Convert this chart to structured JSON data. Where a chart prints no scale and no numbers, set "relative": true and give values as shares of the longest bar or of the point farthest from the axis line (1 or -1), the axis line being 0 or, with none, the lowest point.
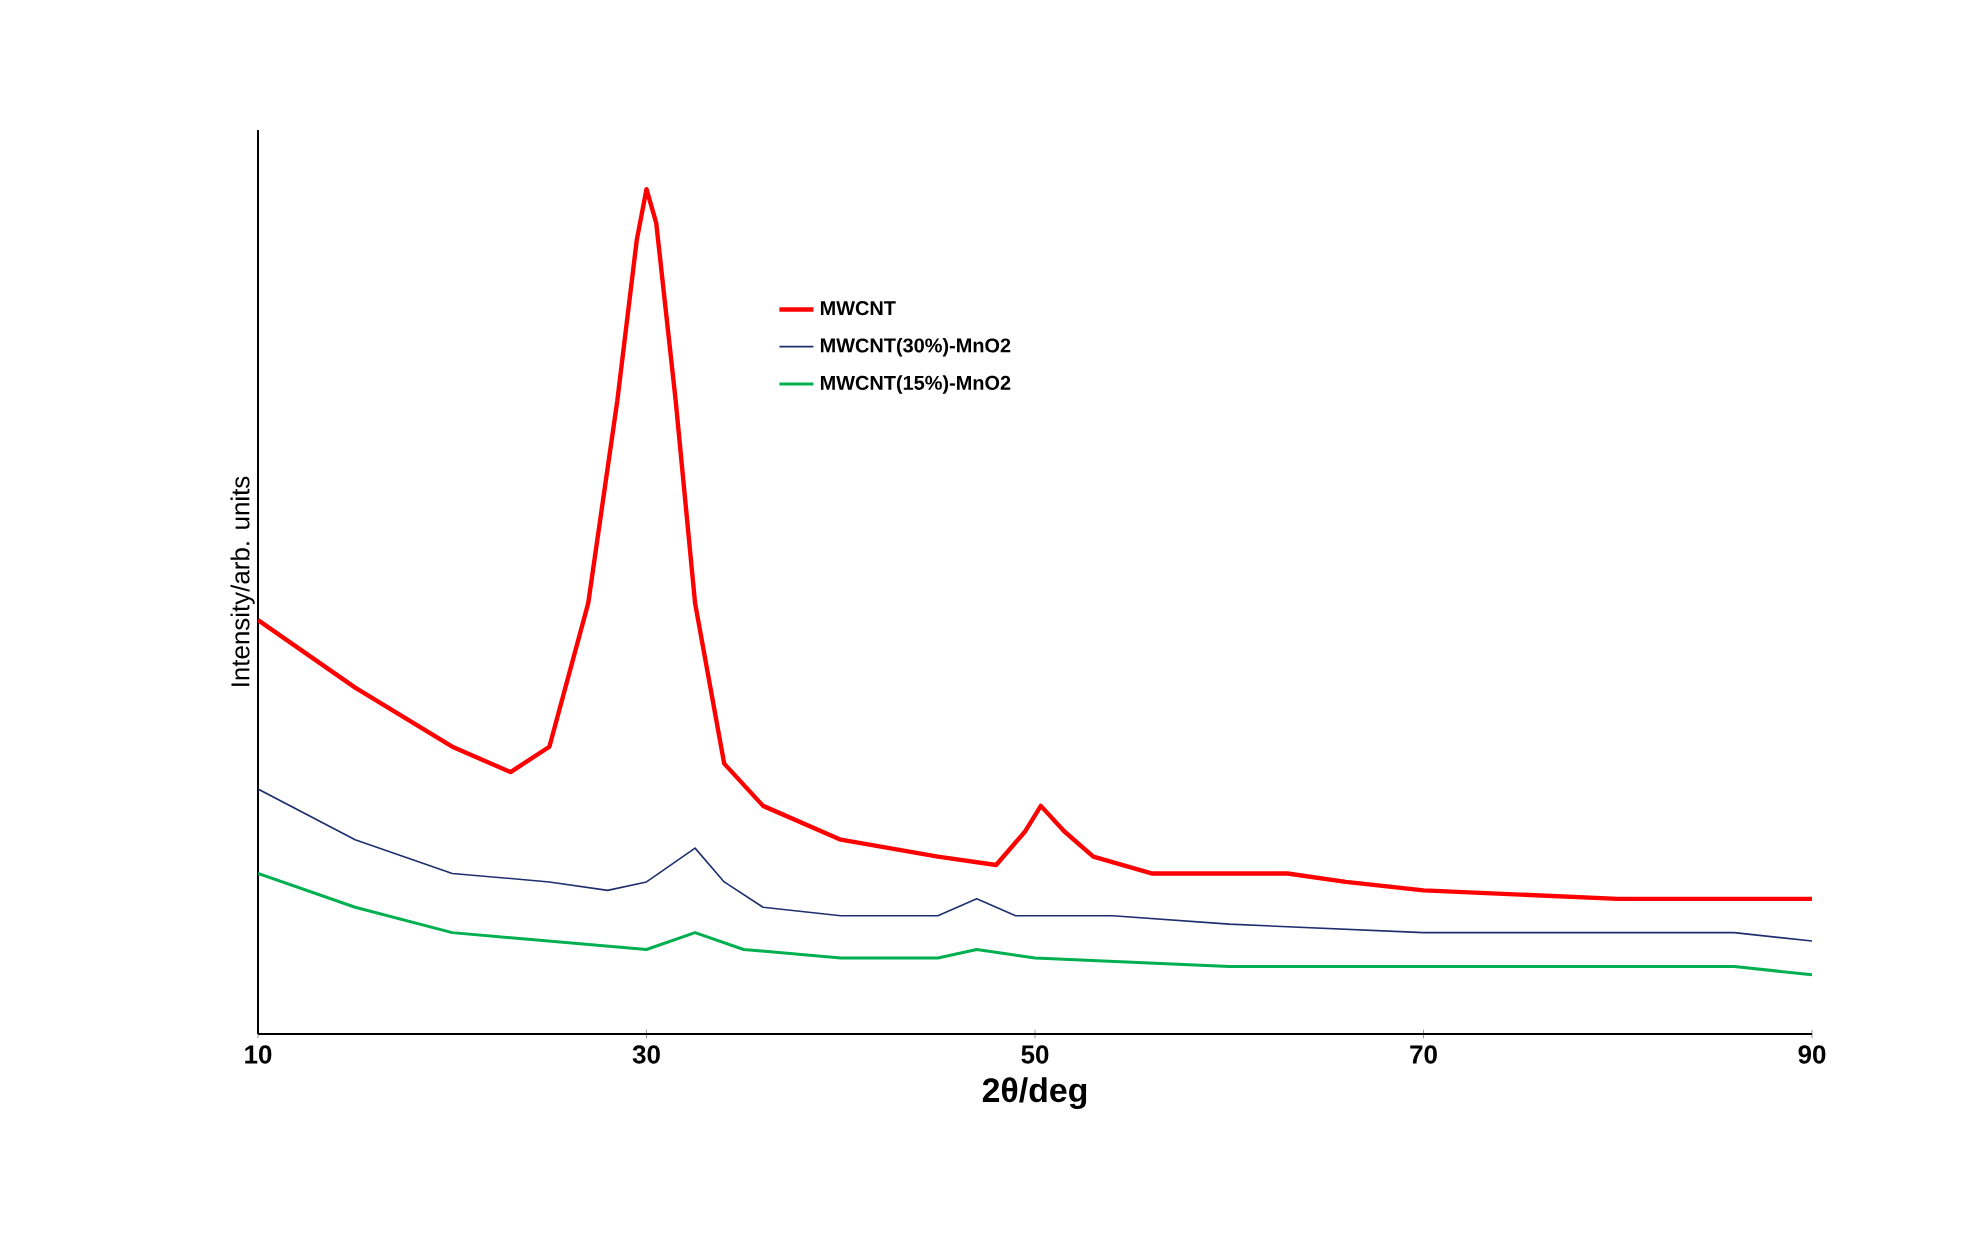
{
  "chart_data": {
    "type": "line",
    "relative": true,
    "xlabel": "2θ/deg",
    "ylabel": "Intensity/arb. units",
    "xlim": [
      10,
      90
    ],
    "xticks": [
      10,
      30,
      50,
      70,
      90
    ],
    "grid": false,
    "legend": "top",
    "marker": "none",
    "line_style": "solid",
    "series": [
      {
        "name": "MWCNT",
        "color": "#ff0000",
        "x": [
          10,
          15,
          20,
          23,
          25,
          27,
          28.5,
          29.5,
          30,
          30.5,
          31.5,
          32.5,
          34,
          36,
          40,
          45,
          48,
          49.5,
          50.3,
          51.5,
          53,
          56,
          60,
          63,
          66,
          70,
          80,
          90
        ],
        "values": [
          0.49,
          0.41,
          0.34,
          0.31,
          0.34,
          0.51,
          0.75,
          0.94,
          1.0,
          0.96,
          0.75,
          0.51,
          0.32,
          0.27,
          0.23,
          0.21,
          0.2,
          0.24,
          0.27,
          0.24,
          0.21,
          0.19,
          0.19,
          0.19,
          0.18,
          0.17,
          0.16,
          0.16
        ]
      },
      {
        "name": "MWCNT(30%)-MnO2",
        "color": "#1f2f6e",
        "x": [
          10,
          15,
          20,
          25,
          28,
          30,
          32.5,
          34,
          36,
          40,
          45,
          47,
          49,
          54,
          60,
          70,
          80,
          86,
          90
        ],
        "values": [
          0.29,
          0.23,
          0.19,
          0.18,
          0.17,
          0.18,
          0.22,
          0.18,
          0.15,
          0.14,
          0.14,
          0.16,
          0.14,
          0.14,
          0.13,
          0.12,
          0.12,
          0.12,
          0.11
        ]
      },
      {
        "name": "MWCNT(15%)-MnO2",
        "color": "#00b050",
        "x": [
          10,
          15,
          20,
          25,
          30,
          32.5,
          35,
          40,
          45,
          47,
          50,
          60,
          70,
          80,
          86,
          90
        ],
        "values": [
          0.19,
          0.15,
          0.12,
          0.11,
          0.1,
          0.12,
          0.1,
          0.09,
          0.09,
          0.1,
          0.09,
          0.08,
          0.08,
          0.08,
          0.08,
          0.07
        ]
      }
    ]
  }
}
